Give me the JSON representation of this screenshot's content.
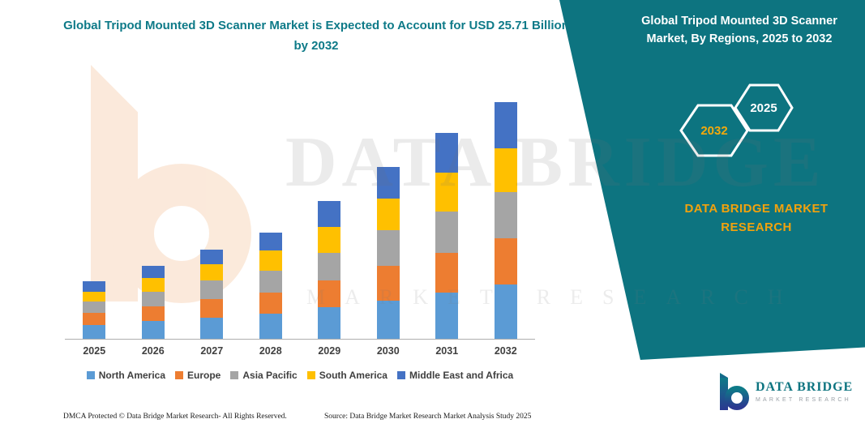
{
  "header": {
    "title": "Global Tripod Mounted 3D Scanner Market is Expected to Account for USD 25.71 Billion by 2032"
  },
  "side_panel": {
    "title": "Global Tripod Mounted 3D Scanner Market, By Regions, 2025 to 2032",
    "hexagons": [
      {
        "label": "2032"
      },
      {
        "label": "2025"
      }
    ],
    "brand": "DATA BRIDGE MARKET RESEARCH"
  },
  "watermark": {
    "line1": "DATA BRIDGE",
    "line2": "MARKET RESEARCH"
  },
  "chart_data": {
    "type": "bar",
    "stacked": true,
    "title": "Global Tripod Mounted 3D Scanner Market is Expected to Account for USD 25.71 Billion by 2032",
    "categories": [
      "2025",
      "2026",
      "2027",
      "2028",
      "2029",
      "2030",
      "2031",
      "2032"
    ],
    "series": [
      {
        "name": "North America",
        "color": "#5B9BD5",
        "values": [
          1.5,
          1.9,
          2.3,
          2.7,
          3.4,
          4.1,
          5.0,
          5.9
        ]
      },
      {
        "name": "Europe",
        "color": "#ED7D31",
        "values": [
          1.3,
          1.6,
          2.0,
          2.3,
          2.9,
          3.8,
          4.3,
          5.0
        ]
      },
      {
        "name": "Asia Pacific",
        "color": "#A5A5A5",
        "values": [
          1.2,
          1.6,
          2.0,
          2.4,
          3.0,
          3.9,
          4.5,
          5.0
        ]
      },
      {
        "name": "South America",
        "color": "#FFC000",
        "values": [
          1.1,
          1.5,
          1.8,
          2.2,
          2.8,
          3.4,
          4.2,
          4.8
        ]
      },
      {
        "name": "Middle East and Africa",
        "color": "#4472C4",
        "values": [
          1.1,
          1.3,
          1.6,
          1.9,
          2.8,
          3.4,
          4.3,
          5.01
        ]
      }
    ],
    "totals": [
      6.2,
      7.9,
      9.7,
      11.5,
      14.9,
      18.6,
      22.3,
      25.71
    ],
    "ylim": [
      0,
      29
    ],
    "grid": false,
    "legend_position": "bottom",
    "xlabel": "",
    "ylabel": ""
  },
  "footer": {
    "dmca": "DMCA Protected © Data Bridge Market Research-  All Rights Reserved.",
    "source": "Source: Data Bridge Market Research  Market Analysis Study 2025",
    "logo_name": "DATA BRIDGE",
    "logo_sub": "MARKET RESEARCH"
  },
  "colors": {
    "teal": "#0d7480",
    "title_teal": "#0e7a88",
    "brand_orange": "#f2a20d",
    "watermark_peach": "#f8d8be"
  }
}
